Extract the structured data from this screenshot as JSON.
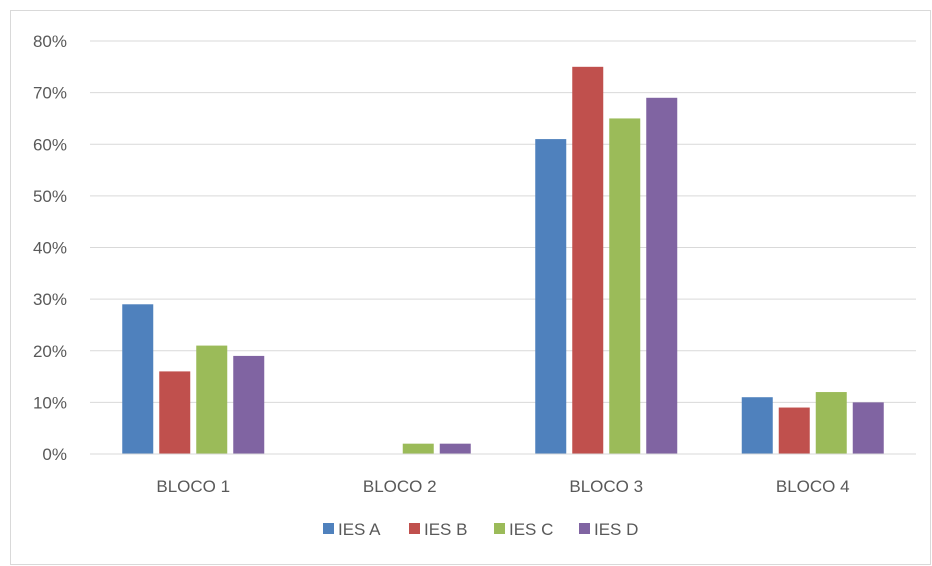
{
  "chart_data": {
    "type": "bar",
    "title": "",
    "xlabel": "",
    "ylabel": "",
    "categories": [
      "BLOCO 1",
      "BLOCO 2",
      "BLOCO 3",
      "BLOCO 4"
    ],
    "series": [
      {
        "name": "IES A",
        "color": "#4f81bd",
        "values": [
          29,
          0,
          61,
          11
        ]
      },
      {
        "name": "IES B",
        "color": "#c0504d",
        "values": [
          16,
          0,
          75,
          9
        ]
      },
      {
        "name": "IES C",
        "color": "#9bbb59",
        "values": [
          21,
          2,
          65,
          12
        ]
      },
      {
        "name": "IES D",
        "color": "#8064a2",
        "values": [
          19,
          2,
          69,
          10
        ]
      }
    ],
    "ylim": [
      0,
      80
    ],
    "yticks": [
      "0%",
      "10%",
      "20%",
      "30%",
      "40%",
      "50%",
      "60%",
      "70%",
      "80%"
    ],
    "grid": true,
    "legend_position": "bottom"
  }
}
